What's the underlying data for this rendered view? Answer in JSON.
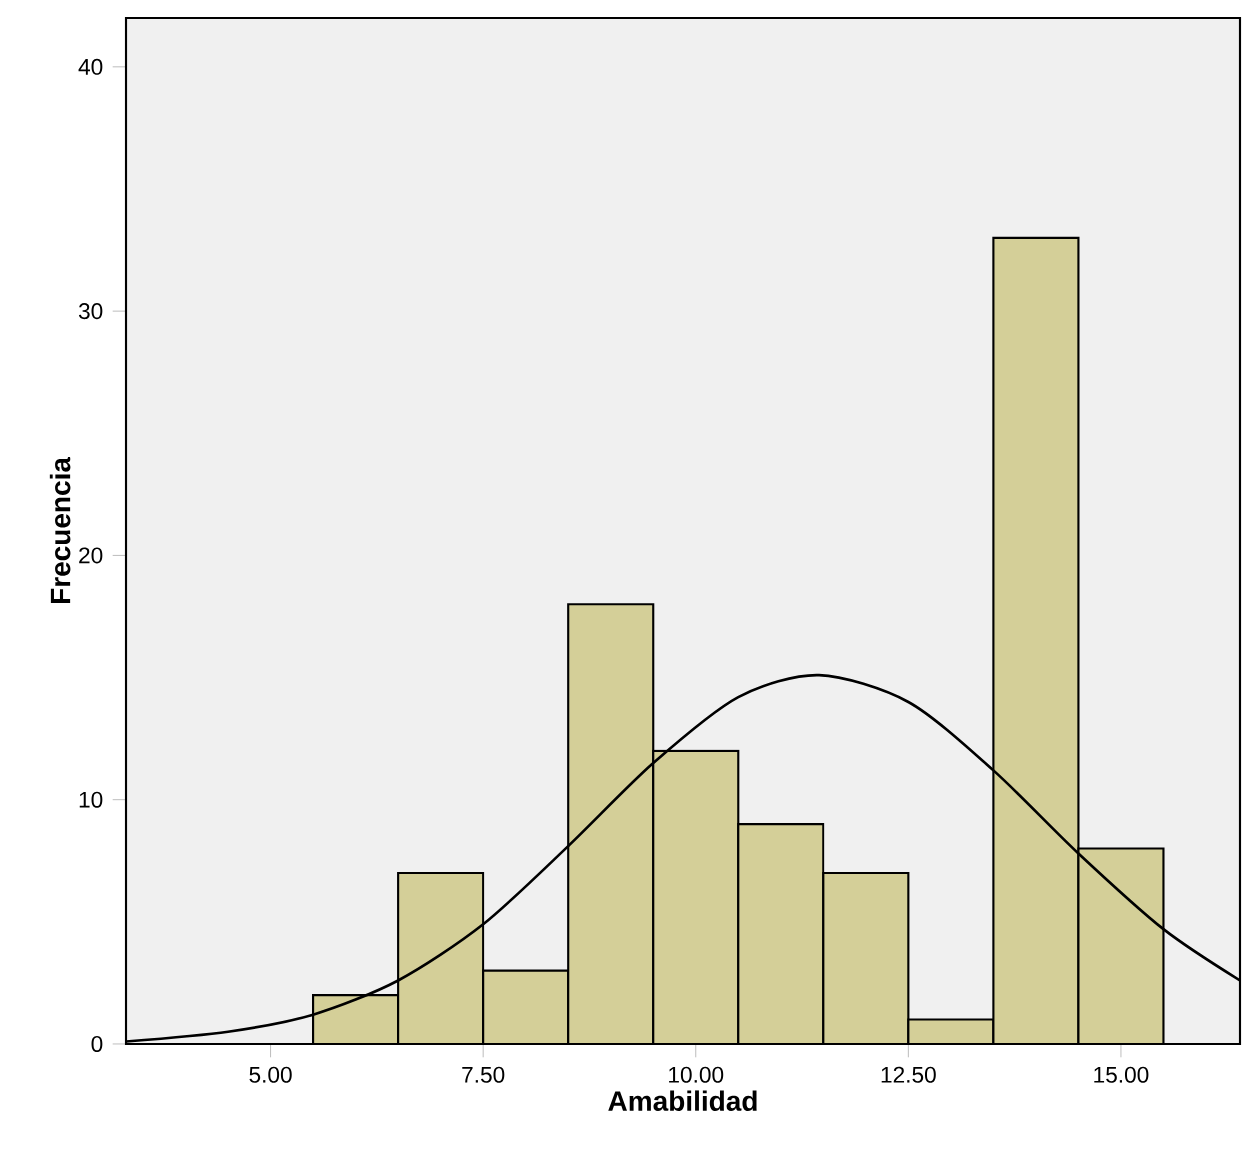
{
  "chart_data": {
    "type": "histogram",
    "xlabel": "Amabilidad",
    "ylabel": "Frecuencia",
    "series": [
      {
        "color": "#d4cf98",
        "bins": [
          5.5,
          6.5,
          7.5,
          8.5,
          9.5,
          10.5,
          11.5,
          12.5,
          13.5,
          14.5,
          15.5
        ],
        "values": [
          2,
          7,
          3,
          18,
          12,
          9,
          7,
          1,
          33,
          8
        ]
      },
      {
        "type": "line",
        "color": "#000000",
        "x": [
          3.3,
          4.5,
          5.5,
          6.5,
          7.5,
          8.5,
          9.5,
          10.5,
          11.45,
          12.5,
          13.5,
          14.5,
          15.5,
          16.4
        ],
        "values": [
          0.1,
          0.5,
          1.2,
          2.6,
          4.9,
          8.1,
          11.5,
          14.2,
          15.1,
          14.0,
          11.2,
          7.8,
          4.7,
          2.6
        ]
      }
    ],
    "xlim": [
      3.3,
      16.4
    ],
    "ylim": [
      0,
      42
    ],
    "xticks": [
      {
        "value": 5,
        "label": "5.00"
      },
      {
        "value": 7.5,
        "label": "7.50"
      },
      {
        "value": 10,
        "label": "10.00"
      },
      {
        "value": 12.5,
        "label": "12.50"
      },
      {
        "value": 15,
        "label": "15.00"
      }
    ],
    "yticks": [
      0,
      10,
      20,
      30,
      40
    ]
  }
}
